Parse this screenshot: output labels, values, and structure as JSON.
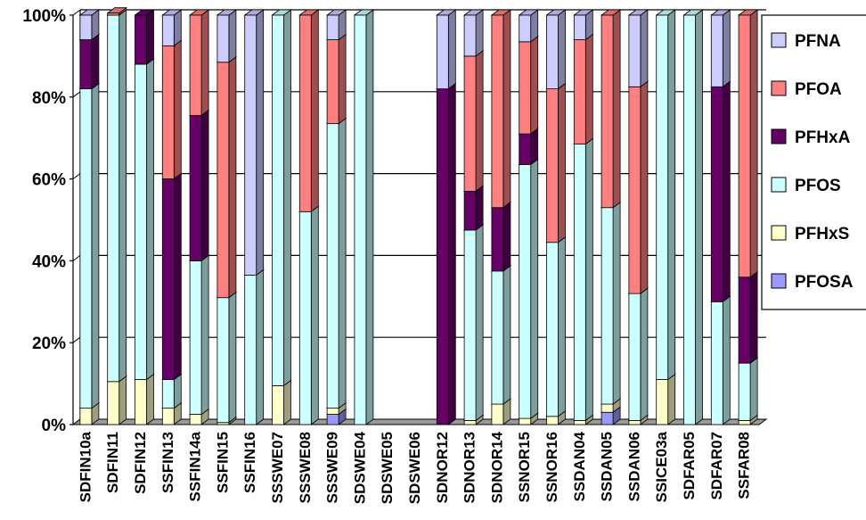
{
  "chart_data": {
    "type": "bar",
    "stacked": "100%",
    "ylim": [
      0,
      100
    ],
    "y_ticks": [
      "0%",
      "20%",
      "40%",
      "60%",
      "80%",
      "100%"
    ],
    "grid": true,
    "legend_position": "right",
    "categories": [
      "SDFIN10a",
      "SDFIN11",
      "SDFIN12",
      "SSFIN13",
      "SSFIN14a",
      "SSFIN15",
      "SSFIN16",
      "SSSWE07",
      "SSSWE08",
      "SSSWE09",
      "SDSWE04",
      "SDSWE05",
      "SDSWE06",
      "SDNOR12",
      "SDNOR13",
      "SDNOR14",
      "SSNOR15",
      "SSNOR16",
      "SSDAN04",
      "SSDAN05",
      "SSDAN06",
      "SSICE03a",
      "SDFAR05",
      "SDFAR07",
      "SSFAR08"
    ],
    "series": [
      {
        "name": "PFOSA",
        "color": "#9999ff",
        "values": [
          0,
          0,
          0,
          0,
          0,
          0,
          0,
          0,
          0,
          2.5,
          0,
          0,
          0,
          0,
          0,
          0,
          0,
          0,
          0,
          3,
          0,
          0,
          0,
          0,
          0
        ]
      },
      {
        "name": "PFHxS",
        "color": "#ffffcc",
        "values": [
          4,
          10.5,
          11,
          4,
          2.5,
          0.5,
          0,
          9.5,
          0,
          1.5,
          0,
          0,
          0,
          0,
          1,
          5,
          1.5,
          2,
          1,
          2,
          1,
          11,
          0,
          0,
          1
        ]
      },
      {
        "name": "PFOS",
        "color": "#ccffff",
        "values": [
          78,
          89.5,
          77,
          7,
          37.5,
          30.5,
          36.5,
          90.5,
          52,
          69.5,
          100,
          0,
          0,
          0,
          46.5,
          32.5,
          62,
          42.5,
          67.5,
          48,
          31,
          89,
          100,
          30,
          14
        ]
      },
      {
        "name": "PFHxA",
        "color": "#660066",
        "values": [
          12,
          0,
          12,
          49,
          35.5,
          0,
          0,
          0,
          0,
          0,
          0,
          0,
          0,
          82,
          9.5,
          15.5,
          7.5,
          0,
          0,
          0,
          0,
          0,
          0,
          52.5,
          21
        ]
      },
      {
        "name": "PFOA",
        "color": "#ff8080",
        "values": [
          0,
          0.5,
          0,
          32.5,
          24.5,
          57.5,
          0,
          0,
          48,
          20.5,
          0,
          0,
          0,
          0,
          33,
          47,
          22.5,
          37.5,
          25.5,
          47,
          50.5,
          0,
          0,
          0,
          64
        ]
      },
      {
        "name": "PFNA",
        "color": "#ccccff",
        "values": [
          6,
          0,
          0,
          7.5,
          0,
          11.5,
          63.5,
          0,
          0,
          6,
          0,
          0,
          0,
          18,
          10,
          0,
          6.5,
          18,
          6,
          0,
          17.5,
          0,
          0,
          17.5,
          0
        ]
      }
    ],
    "legend": [
      "PFNA",
      "PFOA",
      "PFHxA",
      "PFOS",
      "PFHxS",
      "PFOSA"
    ]
  }
}
